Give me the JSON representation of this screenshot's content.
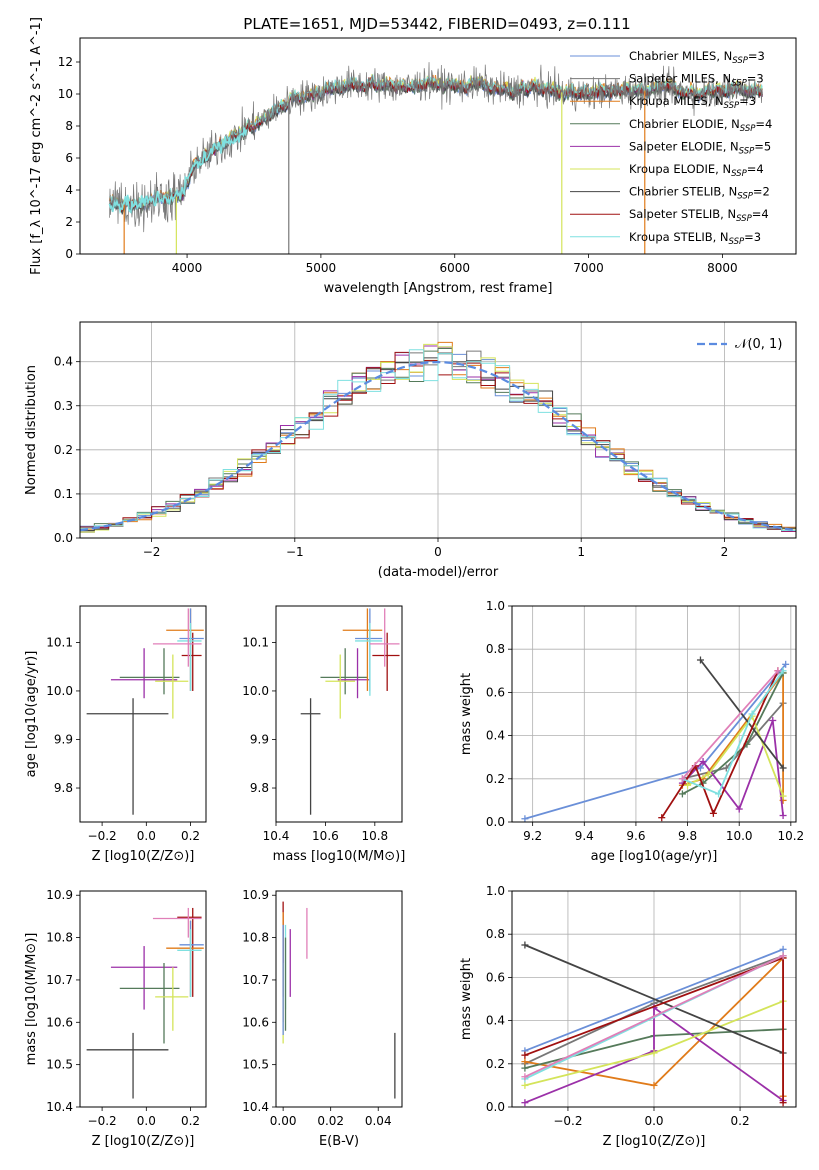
{
  "figure_title": "PLATE=1651, MJD=53442, FIBERID=0493, z=0.111",
  "colors": {
    "Chabrier MILES": "#6a8fd8",
    "Salpeter MILES": "#777777",
    "Kroupa MILES": "#e07b1a",
    "Chabrier ELODIE": "#557a5a",
    "Salpeter ELODIE": "#9b30a8",
    "Kroupa ELODIE": "#d4e45a",
    "Chabrier STELIB": "#444444",
    "Salpeter STELIB": "#a01010",
    "Kroupa STELIB": "#7fe0e0"
  },
  "chart_data": [
    {
      "id": "spectrum",
      "type": "line",
      "title": "PLATE=1651, MJD=53442, FIBERID=0493, z=0.111",
      "xlabel": "wavelength [Angstrom, rest frame]",
      "ylabel": "Flux [f_λ 10^-17 erg cm^-2 s^-1 A^-1]",
      "xlim": [
        3200,
        8550
      ],
      "ylim": [
        0,
        13.5
      ],
      "xticks": [
        4000,
        5000,
        6000,
        7000,
        8000
      ],
      "yticks": [
        0,
        2,
        4,
        6,
        8,
        10,
        12
      ],
      "legend_position": "right",
      "legend": [
        {
          "name": "Chabrier MILES",
          "label": "Chabrier MILES, N",
          "sub": "SSP",
          "tail": "=3"
        },
        {
          "name": "Salpeter MILES",
          "label": "Salpeter MILES, N",
          "sub": "SSP",
          "tail": "=3"
        },
        {
          "name": "Kroupa MILES",
          "label": "Kroupa MILES, N",
          "sub": "SSP",
          "tail": "=3"
        },
        {
          "name": "Chabrier ELODIE",
          "label": "Chabrier ELODIE, N",
          "sub": "SSP",
          "tail": "=4"
        },
        {
          "name": "Salpeter ELODIE",
          "label": "Salpeter ELODIE, N",
          "sub": "SSP",
          "tail": "=5"
        },
        {
          "name": "Kroupa ELODIE",
          "label": "Kroupa ELODIE, N",
          "sub": "SSP",
          "tail": "=4"
        },
        {
          "name": "Chabrier STELIB",
          "label": "Chabrier STELIB, N",
          "sub": "SSP",
          "tail": "=2"
        },
        {
          "name": "Salpeter STELIB",
          "label": "Salpeter STELIB, N",
          "sub": "SSP",
          "tail": "=4"
        },
        {
          "name": "Kroupa STELIB",
          "label": "Kroupa STELIB, N",
          "sub": "SSP",
          "tail": "=3"
        }
      ],
      "continuum": [
        [
          3420,
          3.2
        ],
        [
          3600,
          3.0
        ],
        [
          3800,
          3.5
        ],
        [
          3950,
          3.6
        ],
        [
          4050,
          5.5
        ],
        [
          4200,
          6.5
        ],
        [
          4400,
          7.5
        ],
        [
          4600,
          8.7
        ],
        [
          4800,
          9.7
        ],
        [
          5000,
          10.1
        ],
        [
          5200,
          10.6
        ],
        [
          5400,
          10.6
        ],
        [
          5600,
          10.4
        ],
        [
          5800,
          10.7
        ],
        [
          6000,
          10.5
        ],
        [
          6200,
          10.6
        ],
        [
          6400,
          10.2
        ],
        [
          6600,
          10.4
        ],
        [
          6800,
          10.1
        ],
        [
          7000,
          10.0
        ],
        [
          7200,
          10.2
        ],
        [
          7400,
          10.2
        ],
        [
          7600,
          10.4
        ],
        [
          7800,
          10.0
        ],
        [
          8000,
          10.3
        ],
        [
          8200,
          10.3
        ],
        [
          8300,
          10.1
        ]
      ],
      "drops": [
        [
          3920,
          "Kroupa ELODIE"
        ],
        [
          4760,
          "Salpeter MILES"
        ],
        [
          6800,
          "Kroupa ELODIE"
        ],
        [
          7420,
          "Kroupa MILES"
        ],
        [
          3530,
          "Kroupa MILES"
        ]
      ]
    },
    {
      "id": "residuals",
      "type": "histogram",
      "xlabel": "(data-model)/error",
      "ylabel": "Normed distribution",
      "xlim": [
        -2.5,
        2.5
      ],
      "ylim": [
        0,
        0.49
      ],
      "xticks": [
        -2,
        -1,
        0,
        1,
        2
      ],
      "yticks": [
        0.0,
        0.1,
        0.2,
        0.3,
        0.4
      ],
      "grid": true,
      "legend_position": "top-right",
      "reference_label": "𝒩(0, 1)",
      "bin_width": 0.1
    },
    {
      "id": "age-vs-Z",
      "type": "errorbar",
      "xlabel": "Z [log10(Z/Z⊙)]",
      "ylabel": "age  [log10(age/yr)]",
      "xlim": [
        -0.3,
        0.27
      ],
      "ylim": [
        9.73,
        10.175
      ],
      "xticks": [
        -0.2,
        0.0,
        0.2
      ],
      "yticks": [
        9.8,
        9.9,
        10.0,
        10.1
      ]
    },
    {
      "id": "age-vs-mass",
      "type": "errorbar",
      "xlabel": "mass [log10(M/M⊙)]",
      "ylabel": "",
      "xlim": [
        10.4,
        10.91
      ],
      "ylim": [
        9.73,
        10.175
      ],
      "xticks": [
        10.4,
        10.6,
        10.8
      ],
      "yticks": [
        9.8,
        9.9,
        10.0,
        10.1
      ]
    },
    {
      "id": "massweight-vs-age",
      "type": "line",
      "xlabel": "age  [log10(age/yr)]",
      "ylabel": "mass weight",
      "xlim": [
        9.12,
        10.22
      ],
      "ylim": [
        0,
        1.0
      ],
      "xticks": [
        9.2,
        9.4,
        9.6,
        9.8,
        10.0,
        10.2
      ],
      "yticks": [
        0.0,
        0.2,
        0.4,
        0.6,
        0.8,
        1.0
      ],
      "grid": true,
      "series": [
        {
          "name": "Chabrier MILES",
          "x": [
            9.17,
            9.85,
            10.18
          ],
          "y": [
            0.015,
            0.25,
            0.73
          ]
        },
        {
          "name": "Salpeter MILES",
          "x": [
            9.78,
            9.95,
            10.17
          ],
          "y": [
            0.2,
            0.25,
            0.55
          ]
        },
        {
          "name": "Kroupa MILES",
          "x": [
            9.78,
            9.86,
            10.17,
            10.17
          ],
          "y": [
            0.17,
            0.2,
            0.69,
            0.1
          ]
        },
        {
          "name": "Chabrier ELODIE",
          "x": [
            9.78,
            9.86,
            10.03,
            10.17
          ],
          "y": [
            0.13,
            0.18,
            0.36,
            0.69
          ]
        },
        {
          "name": "Salpeter ELODIE",
          "x": [
            9.78,
            9.86,
            10.0,
            10.13,
            10.17
          ],
          "y": [
            0.18,
            0.28,
            0.06,
            0.47,
            0.03
          ]
        },
        {
          "name": "Kroupa ELODIE",
          "x": [
            9.8,
            9.88,
            10.05,
            10.17
          ],
          "y": [
            0.17,
            0.22,
            0.49,
            0.12
          ]
        },
        {
          "name": "Chabrier STELIB",
          "x": [
            9.85,
            10.17
          ],
          "y": [
            0.75,
            0.25
          ]
        },
        {
          "name": "Salpeter STELIB",
          "x": [
            9.7,
            9.83,
            9.9,
            10.15
          ],
          "y": [
            0.02,
            0.26,
            0.04,
            0.7
          ]
        },
        {
          "name": "Kroupa STELIB",
          "x": [
            9.78,
            9.92,
            10.05,
            10.17
          ],
          "y": [
            0.2,
            0.13,
            0.5,
            0.7
          ]
        },
        {
          "name": "Pink",
          "x": [
            9.78,
            10.15
          ],
          "y": [
            0.2,
            0.7
          ]
        }
      ]
    },
    {
      "id": "mass-vs-Z",
      "type": "errorbar",
      "xlabel": "Z [log10(Z/Z⊙)]",
      "ylabel": "mass [log10(M/M⊙)]",
      "xlim": [
        -0.3,
        0.27
      ],
      "ylim": [
        10.4,
        10.91
      ],
      "xticks": [
        -0.2,
        0.0,
        0.2
      ],
      "yticks": [
        10.4,
        10.5,
        10.6,
        10.7,
        10.8,
        10.9
      ]
    },
    {
      "id": "mass-vs-EBV",
      "type": "errorbar",
      "xlabel": "E(B-V)",
      "ylabel": "",
      "xlim": [
        -0.003,
        0.05
      ],
      "ylim": [
        10.4,
        10.91
      ],
      "xticks": [
        0.0,
        0.02,
        0.04
      ],
      "yticks": [
        10.4,
        10.5,
        10.6,
        10.7,
        10.8,
        10.9
      ]
    },
    {
      "id": "massweight-vs-Z",
      "type": "line",
      "xlabel": "Z [log10(Z/Z⊙)]",
      "ylabel": "mass weight",
      "xlim": [
        -0.33,
        0.33
      ],
      "ylim": [
        0,
        1.0
      ],
      "xticks": [
        -0.2,
        0.0,
        0.2
      ],
      "yticks": [
        0.0,
        0.2,
        0.4,
        0.6,
        0.8,
        1.0
      ],
      "grid": true,
      "series": [
        {
          "name": "Chabrier MILES",
          "x": [
            -0.3,
            0.3
          ],
          "y": [
            0.26,
            0.73
          ]
        },
        {
          "name": "Salpeter MILES",
          "x": [
            -0.3,
            0.0,
            0.3
          ],
          "y": [
            0.2,
            0.48,
            0.7
          ]
        },
        {
          "name": "Kroupa MILES",
          "x": [
            -0.3,
            0.0,
            0.3,
            0.3
          ],
          "y": [
            0.21,
            0.1,
            0.69,
            0.05
          ]
        },
        {
          "name": "Chabrier ELODIE",
          "x": [
            -0.3,
            0.0,
            0.3
          ],
          "y": [
            0.18,
            0.33,
            0.36
          ]
        },
        {
          "name": "Salpeter ELODIE",
          "x": [
            -0.3,
            0.0,
            0.0,
            0.3
          ],
          "y": [
            0.02,
            0.26,
            0.46,
            0.03
          ]
        },
        {
          "name": "Kroupa ELODIE",
          "x": [
            -0.3,
            0.0,
            0.3
          ],
          "y": [
            0.1,
            0.25,
            0.49
          ]
        },
        {
          "name": "Chabrier STELIB",
          "x": [
            -0.3,
            0.3
          ],
          "y": [
            0.75,
            0.25
          ]
        },
        {
          "name": "Salpeter STELIB",
          "x": [
            -0.3,
            0.3,
            0.3
          ],
          "y": [
            0.24,
            0.69,
            0.02
          ]
        },
        {
          "name": "Kroupa STELIB",
          "x": [
            -0.3,
            0.3
          ],
          "y": [
            0.13,
            0.7
          ]
        },
        {
          "name": "Pink",
          "x": [
            -0.3,
            0.3
          ],
          "y": [
            0.14,
            0.7
          ]
        }
      ]
    }
  ],
  "errorbars": {
    "age_Z": [
      {
        "c": "Chabrier STELIB",
        "x": -0.06,
        "xe": [
          -0.27,
          0.1
        ],
        "y": 9.953,
        "ye": [
          9.745,
          9.985
        ]
      },
      {
        "c": "Salpeter ELODIE",
        "x": -0.01,
        "xe": [
          -0.16,
          0.14
        ],
        "y": 10.023,
        "ye": [
          9.985,
          10.088
        ]
      },
      {
        "c": "Chabrier ELODIE",
        "x": 0.08,
        "xe": [
          -0.12,
          0.15
        ],
        "y": 10.028,
        "ye": [
          9.993,
          10.088
        ]
      },
      {
        "c": "Kroupa ELODIE",
        "x": 0.12,
        "xe": [
          0.04,
          0.19
        ],
        "y": 10.02,
        "ye": [
          9.943,
          10.075
        ]
      },
      {
        "c": "Salpeter STELIB",
        "x": 0.21,
        "xe": [
          0.16,
          0.25
        ],
        "y": 10.073,
        "ye": [
          10.0,
          10.12
        ]
      },
      {
        "c": "Kroupa MILES",
        "x": 0.2,
        "xe": [
          0.09,
          0.26
        ],
        "y": 10.125,
        "ye": [
          10.0,
          10.17
        ]
      },
      {
        "c": "Chabrier MILES",
        "x": 0.2,
        "xe": [
          0.15,
          0.26
        ],
        "y": 10.108,
        "ye": [
          10.0,
          10.17
        ]
      },
      {
        "c": "Kroupa STELIB",
        "x": 0.2,
        "xe": [
          0.14,
          0.25
        ],
        "y": 10.103,
        "ye": [
          10.0,
          10.14
        ]
      },
      {
        "c": "Pink",
        "x": 0.19,
        "xe": [
          0.03,
          0.25
        ],
        "y": 10.097,
        "ye": [
          10.05,
          10.17
        ]
      }
    ],
    "age_mass": [
      {
        "c": "Chabrier STELIB",
        "x": 10.54,
        "xe": [
          10.5,
          10.58
        ],
        "y": 9.953,
        "ye": [
          9.745,
          9.985
        ]
      },
      {
        "c": "Chabrier ELODIE",
        "x": 10.68,
        "xe": [
          10.58,
          10.77
        ],
        "y": 10.028,
        "ye": [
          9.993,
          10.088
        ]
      },
      {
        "c": "Salpeter ELODIE",
        "x": 10.73,
        "xe": [
          10.65,
          10.78
        ],
        "y": 10.023,
        "ye": [
          9.985,
          10.088
        ]
      },
      {
        "c": "Kroupa ELODIE",
        "x": 10.66,
        "xe": [
          10.6,
          10.72
        ],
        "y": 10.02,
        "ye": [
          9.943,
          10.075
        ]
      },
      {
        "c": "Salpeter STELIB",
        "x": 10.85,
        "xe": [
          10.79,
          10.9
        ],
        "y": 10.073,
        "ye": [
          10.0,
          10.12
        ]
      },
      {
        "c": "Kroupa MILES",
        "x": 10.77,
        "xe": [
          10.67,
          10.83
        ],
        "y": 10.125,
        "ye": [
          10.0,
          10.17
        ]
      },
      {
        "c": "Chabrier MILES",
        "x": 10.78,
        "xe": [
          10.72,
          10.83
        ],
        "y": 10.108,
        "ye": [
          10.0,
          10.17
        ]
      },
      {
        "c": "Kroupa STELIB",
        "x": 10.78,
        "xe": [
          10.72,
          10.83
        ],
        "y": 10.103,
        "ye": [
          9.99,
          10.14
        ]
      },
      {
        "c": "Pink",
        "x": 10.84,
        "xe": [
          10.78,
          10.9
        ],
        "y": 10.097,
        "ye": [
          10.05,
          10.17
        ]
      }
    ],
    "mass_Z": [
      {
        "c": "Chabrier STELIB",
        "x": -0.06,
        "xe": [
          -0.27,
          0.1
        ],
        "y": 10.535,
        "ye": [
          10.42,
          10.575
        ]
      },
      {
        "c": "Salpeter ELODIE",
        "x": -0.01,
        "xe": [
          -0.16,
          0.14
        ],
        "y": 10.73,
        "ye": [
          10.63,
          10.78
        ]
      },
      {
        "c": "Chabrier ELODIE",
        "x": 0.08,
        "xe": [
          -0.12,
          0.15
        ],
        "y": 10.68,
        "ye": [
          10.55,
          10.74
        ]
      },
      {
        "c": "Kroupa ELODIE",
        "x": 0.12,
        "xe": [
          0.04,
          0.19
        ],
        "y": 10.66,
        "ye": [
          10.58,
          10.73
        ]
      },
      {
        "c": "Salpeter STELIB",
        "x": 0.21,
        "xe": [
          0.14,
          0.25
        ],
        "y": 10.848,
        "ye": [
          10.66,
          10.87
        ]
      },
      {
        "c": "Kroupa MILES",
        "x": 0.2,
        "xe": [
          0.09,
          0.26
        ],
        "y": 10.775,
        "ye": [
          10.66,
          10.84
        ]
      },
      {
        "c": "Chabrier MILES",
        "x": 0.2,
        "xe": [
          0.15,
          0.26
        ],
        "y": 10.783,
        "ye": [
          10.66,
          10.84
        ]
      },
      {
        "c": "Kroupa STELIB",
        "x": 0.2,
        "xe": [
          0.14,
          0.25
        ],
        "y": 10.77,
        "ye": [
          10.66,
          10.82
        ]
      },
      {
        "c": "Pink",
        "x": 0.19,
        "xe": [
          0.03,
          0.25
        ],
        "y": 10.845,
        "ye": [
          10.8,
          10.87
        ]
      }
    ],
    "mass_ebv": [
      {
        "c": "Chabrier STELIB",
        "x": 0.047,
        "y": 10.5,
        "ye": [
          10.42,
          10.575
        ]
      },
      {
        "c": "Salpeter STELIB",
        "x": 0.0,
        "y": 10.78,
        "ye": [
          10.66,
          10.885
        ]
      },
      {
        "c": "Kroupa MILES",
        "x": 0.0,
        "y": 10.75,
        "ye": [
          10.6,
          10.86
        ]
      },
      {
        "c": "Kroupa ELODIE",
        "x": 0.0,
        "y": 10.66,
        "ye": [
          10.55,
          10.74
        ]
      },
      {
        "c": "Chabrier MILES",
        "x": 0.0,
        "y": 10.7,
        "ye": [
          10.57,
          10.83
        ]
      },
      {
        "c": "Kroupa STELIB",
        "x": 0.001,
        "y": 10.73,
        "ye": [
          10.63,
          10.83
        ]
      },
      {
        "c": "Chabrier ELODIE",
        "x": 0.001,
        "y": 10.68,
        "ye": [
          10.58,
          10.8
        ]
      },
      {
        "c": "Salpeter ELODIE",
        "x": 0.003,
        "y": 10.73,
        "ye": [
          10.66,
          10.82
        ]
      },
      {
        "c": "Pink",
        "x": 0.01,
        "y": 10.83,
        "ye": [
          10.75,
          10.87
        ]
      }
    ]
  }
}
